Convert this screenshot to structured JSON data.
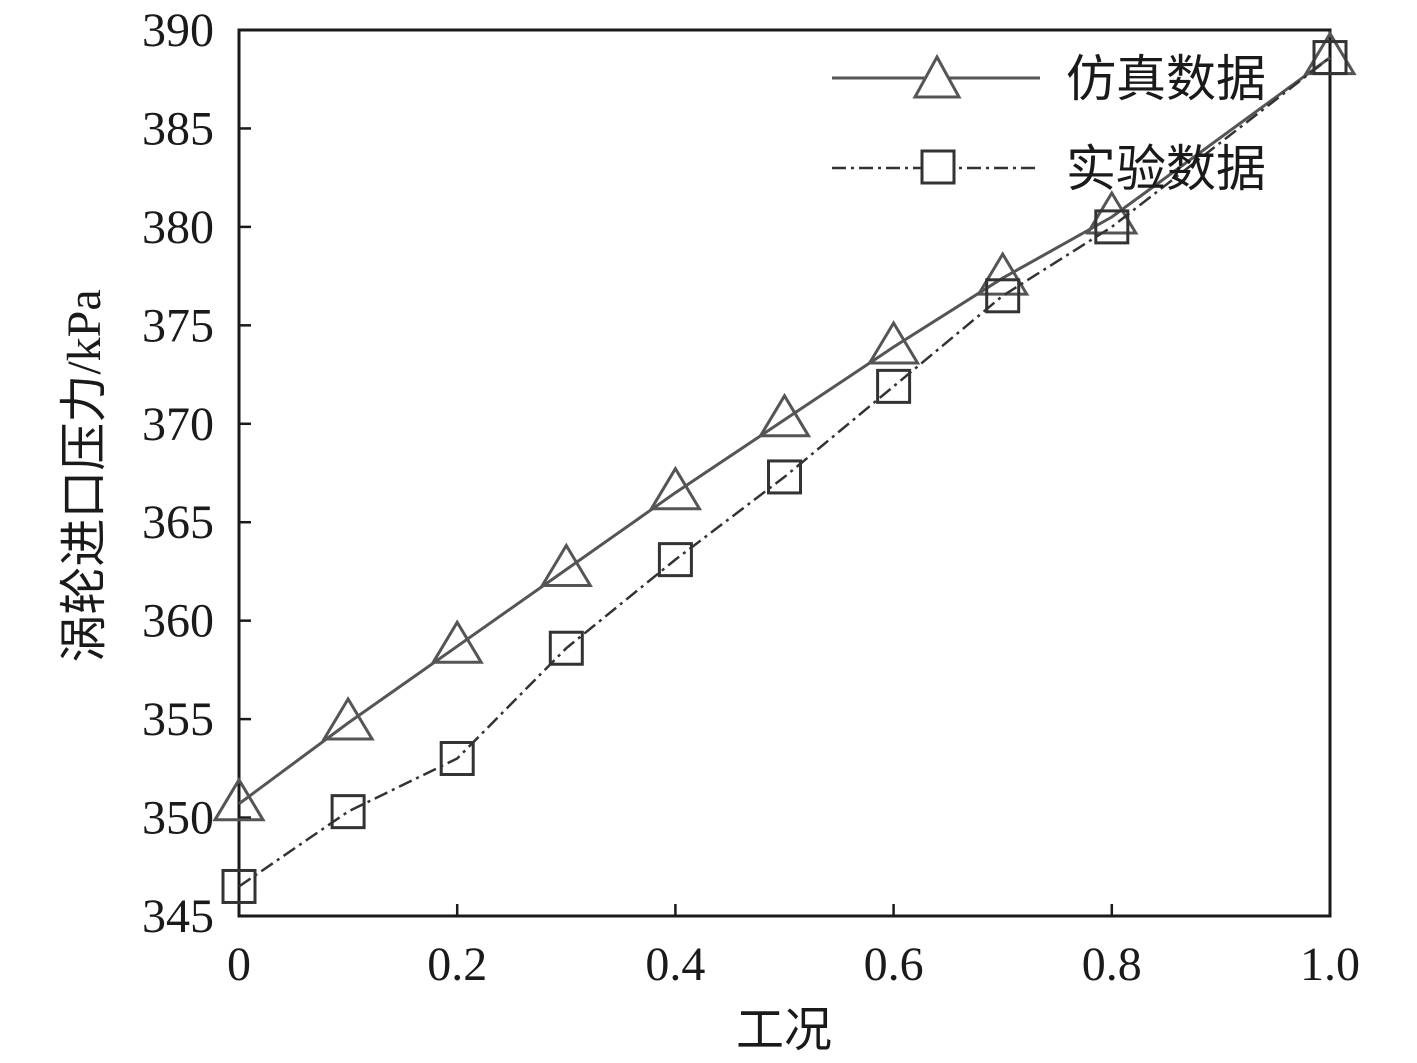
{
  "chart_data": {
    "type": "line",
    "xlabel": "工况",
    "ylabel": "涡轮进口压力/kPa",
    "xlim": [
      0,
      1.0
    ],
    "ylim": [
      345,
      390
    ],
    "x_ticks": [
      0,
      0.2,
      0.4,
      0.6,
      0.8,
      1.0
    ],
    "x_tick_labels": [
      "0",
      "0.2",
      "0.4",
      "0.6",
      "0.8",
      "1.0"
    ],
    "y_ticks": [
      345,
      350,
      355,
      360,
      365,
      370,
      375,
      380,
      385,
      390
    ],
    "y_tick_labels": [
      "345",
      "350",
      "355",
      "360",
      "365",
      "370",
      "375",
      "380",
      "385",
      "390"
    ],
    "grid": false,
    "legend_position": "top-right",
    "x": [
      0,
      0.1,
      0.2,
      0.3,
      0.4,
      0.5,
      0.6,
      0.7,
      0.8,
      1.0
    ],
    "series": [
      {
        "name": "仿真数据",
        "marker": "triangle",
        "line_style": "solid",
        "color": "#555555",
        "values": [
          350.7,
          354.8,
          358.7,
          362.6,
          366.5,
          370.2,
          373.9,
          377.4,
          380.5,
          388.6
        ]
      },
      {
        "name": "实验数据",
        "marker": "square",
        "line_style": "dash-dot",
        "color": "#333333",
        "values": [
          346.5,
          350.3,
          353.0,
          358.6,
          363.1,
          367.3,
          371.9,
          376.5,
          380.0,
          388.6
        ]
      }
    ]
  }
}
